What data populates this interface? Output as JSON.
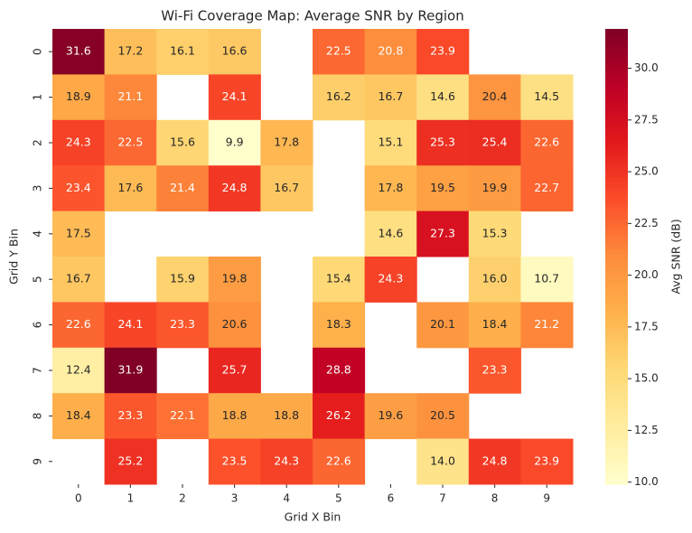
{
  "chart_data": {
    "type": "heatmap",
    "title": "Wi-Fi Coverage Map: Average SNR by Region",
    "x_label": "Grid X Bin",
    "y_label": "Grid Y Bin",
    "colorbar_label": "Avg SNR (dB)",
    "colormap": "YlOrRd",
    "x": [
      0,
      1,
      2,
      3,
      4,
      5,
      6,
      7,
      8,
      9
    ],
    "y": [
      0,
      1,
      2,
      3,
      4,
      5,
      6,
      7,
      8,
      9
    ],
    "values": [
      [
        31.6,
        17.2,
        16.1,
        16.6,
        null,
        22.5,
        20.8,
        23.9,
        null,
        null
      ],
      [
        18.9,
        21.1,
        null,
        24.1,
        null,
        16.2,
        16.7,
        14.6,
        20.4,
        14.5
      ],
      [
        24.3,
        22.5,
        15.6,
        9.9,
        17.8,
        null,
        15.1,
        25.3,
        25.4,
        22.6
      ],
      [
        23.4,
        17.6,
        21.4,
        24.8,
        16.7,
        null,
        17.8,
        19.5,
        19.9,
        22.7
      ],
      [
        17.5,
        null,
        null,
        null,
        null,
        null,
        14.6,
        27.3,
        15.3,
        null
      ],
      [
        16.7,
        null,
        15.9,
        19.8,
        null,
        15.4,
        24.3,
        null,
        16,
        10.7
      ],
      [
        22.6,
        24.1,
        23.3,
        20.6,
        null,
        18.3,
        null,
        20.1,
        18.4,
        21.2
      ],
      [
        12.4,
        31.9,
        null,
        25.7,
        null,
        28.8,
        null,
        null,
        23.3,
        null
      ],
      [
        18.4,
        23.3,
        22.1,
        18.8,
        18.8,
        26.2,
        19.6,
        20.5,
        null,
        null
      ],
      [
        null,
        25.2,
        null,
        23.5,
        24.3,
        22.6,
        null,
        14,
        24.8,
        23.9
      ]
    ],
    "value_labels": [
      [
        "31.6",
        "17.2",
        "16.1",
        "16.6",
        null,
        "22.5",
        "20.8",
        "23.9",
        null,
        null
      ],
      [
        "18.9",
        "21.1",
        null,
        "24.1",
        null,
        "16.2",
        "16.7",
        "14.6",
        "20.4",
        "14.5"
      ],
      [
        "24.3",
        "22.5",
        "15.6",
        "9.9",
        "17.8",
        null,
        "15.1",
        "25.3",
        "25.4",
        "22.6"
      ],
      [
        "23.4",
        "17.6",
        "21.4",
        "24.8",
        "16.7",
        null,
        "17.8",
        "19.5",
        "19.9",
        "22.7"
      ],
      [
        "17.5",
        null,
        null,
        null,
        null,
        null,
        "14.6",
        "27.3",
        "15.3",
        null
      ],
      [
        "16.7",
        null,
        "15.9",
        "19.8",
        null,
        "15.4",
        "24.3",
        null,
        "16.0",
        "10.7"
      ],
      [
        "22.6",
        "24.1",
        "23.3",
        "20.6",
        null,
        "18.3",
        null,
        "20.1",
        "18.4",
        "21.2"
      ],
      [
        "12.4",
        "31.9",
        null,
        "25.7",
        null,
        "28.8",
        null,
        null,
        "23.3",
        null
      ],
      [
        "18.4",
        "23.3",
        "22.1",
        "18.8",
        "18.8",
        "26.2",
        "19.6",
        "20.5",
        null,
        null
      ],
      [
        null,
        "25.2",
        null,
        "23.5",
        "24.3",
        "22.6",
        null,
        "14.0",
        "24.8",
        "23.9"
      ]
    ],
    "clim": [
      9.9,
      31.9
    ],
    "cticks": [
      {
        "value": 10,
        "label": "10.0"
      },
      12.5,
      {
        "value": 15,
        "label": "15.0"
      },
      17.5,
      {
        "value": 20,
        "label": "20.0"
      },
      22.5,
      {
        "value": 25,
        "label": "25.0"
      },
      27.5,
      {
        "value": 30,
        "label": "30.0"
      }
    ]
  }
}
